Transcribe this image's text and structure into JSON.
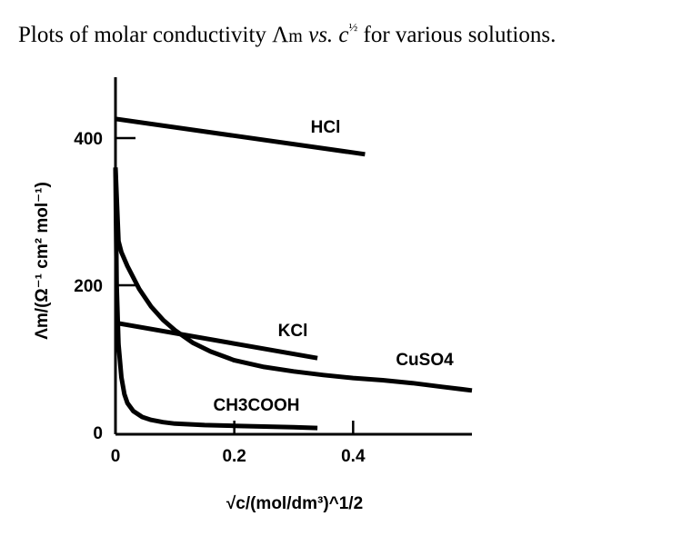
{
  "caption": {
    "prefix": "Plots of molar conductivity ",
    "lambda": "Λ",
    "lambda_sub": "m",
    "vs": " vs. ",
    "c": "c",
    "exp": "½",
    "suffix": " for various solutions."
  },
  "chart_data": {
    "type": "line",
    "xlabel": "√c/(mol/dm³)^1/2",
    "ylabel": "Λm/(Ω⁻¹ cm² mol⁻¹)",
    "xlim": [
      0,
      0.6
    ],
    "ylim": [
      0,
      480
    ],
    "x_ticks": [
      0,
      0.2,
      0.4
    ],
    "x_tick_labels": [
      "0",
      "0.2",
      "0.4"
    ],
    "y_ticks": [
      0,
      200,
      400
    ],
    "y_tick_labels": [
      "0",
      "200",
      "400"
    ],
    "grid": false,
    "legend": "none",
    "series": [
      {
        "name": "HCl",
        "x": [
          0,
          0.42
        ],
        "y": [
          426,
          378
        ]
      },
      {
        "name": "KCl",
        "x": [
          0,
          0.34
        ],
        "y": [
          149,
          101
        ]
      },
      {
        "name": "CuSO4",
        "x": [
          0,
          0.005,
          0.01,
          0.02,
          0.04,
          0.06,
          0.08,
          0.1,
          0.13,
          0.16,
          0.2,
          0.25,
          0.3,
          0.35,
          0.4,
          0.45,
          0.5,
          0.55,
          0.6
        ],
        "y": [
          360,
          260,
          245,
          226,
          195,
          171,
          153,
          139,
          122,
          110,
          98,
          89,
          83,
          78,
          74,
          71,
          67,
          62,
          57
        ]
      },
      {
        "name": "CH3COOH",
        "x": [
          0,
          0.002,
          0.005,
          0.01,
          0.015,
          0.02,
          0.03,
          0.045,
          0.06,
          0.08,
          0.1,
          0.15,
          0.2,
          0.25,
          0.3,
          0.34
        ],
        "y": [
          360,
          200,
          120,
          75,
          52,
          40,
          29,
          21,
          17,
          14,
          12,
          10,
          9,
          8,
          7,
          6
        ]
      }
    ]
  }
}
